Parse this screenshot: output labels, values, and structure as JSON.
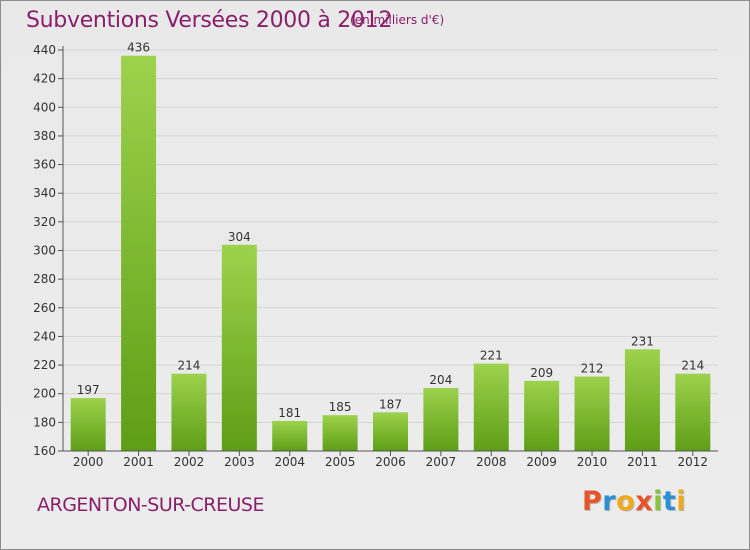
{
  "chart_data": {
    "type": "bar",
    "title": "Subventions Versées 2000 à 2012",
    "subtitle": "(en milliers d'€)",
    "categories": [
      "2000",
      "2001",
      "2002",
      "2003",
      "2004",
      "2005",
      "2006",
      "2007",
      "2008",
      "2009",
      "2010",
      "2011",
      "2012"
    ],
    "values": [
      197,
      436,
      214,
      304,
      181,
      185,
      187,
      204,
      221,
      209,
      212,
      231,
      214
    ],
    "ylim": [
      160,
      440
    ],
    "yticks": [
      160,
      180,
      200,
      220,
      240,
      260,
      280,
      300,
      320,
      340,
      360,
      380,
      400,
      420,
      440
    ],
    "grid": true,
    "bar_color_top": "#9dd24d",
    "bar_color_bottom": "#5e9e16"
  },
  "footer": {
    "place": "ARGENTON-SUR-CREUSE",
    "logo_text": "Proxiti",
    "logo_colors": [
      "#e8542a",
      "#2b8fd6",
      "#f0a81d",
      "#e8542a",
      "#8ac43f",
      "#2b8fd6",
      "#f0a81d"
    ]
  },
  "colors": {
    "title": "#8a1f6b",
    "grid": "#d4d4d4",
    "axis": "#555555"
  }
}
